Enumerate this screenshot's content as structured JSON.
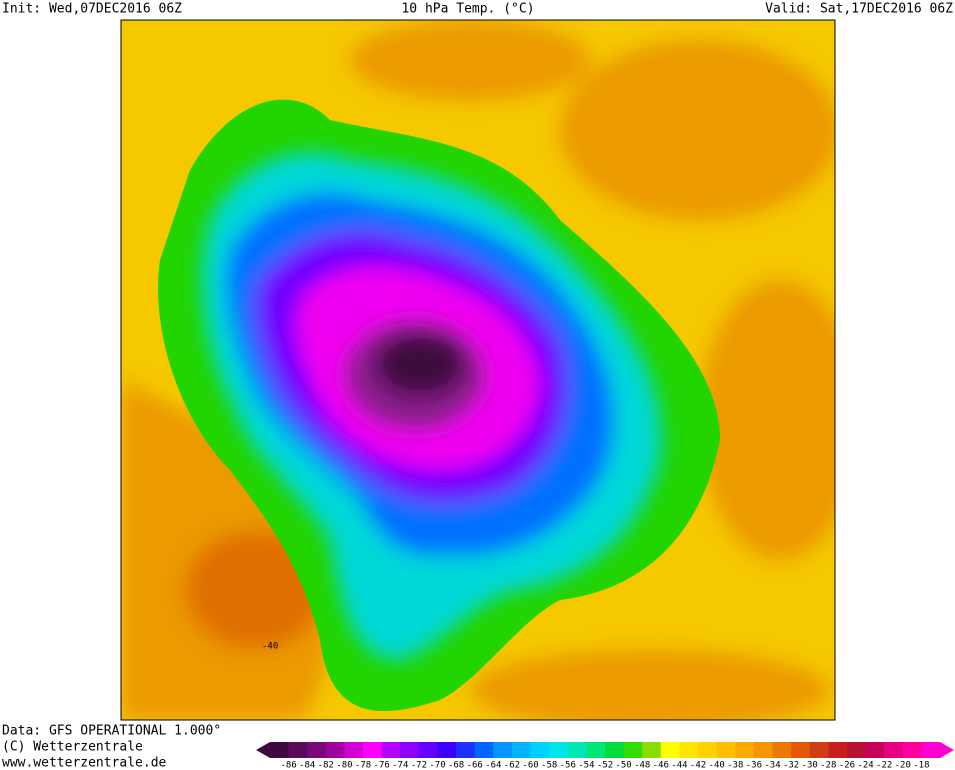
{
  "header": {
    "init": "Init: Wed,07DEC2016 06Z",
    "title": "10 hPa Temp. (°C)",
    "valid": "Valid: Sat,17DEC2016 06Z"
  },
  "map": {
    "contour_label": "-40"
  },
  "footer": {
    "source": "Data: GFS OPERATIONAL 1.000°",
    "copyright": "(C) Wetterzentrale",
    "url": "www.wetterzentrale.de"
  },
  "colorbar": {
    "colors": [
      "#3c0a3c",
      "#5a0a5a",
      "#780a78",
      "#a000a0",
      "#d200d2",
      "#ff00ff",
      "#b400ff",
      "#8c00ff",
      "#6400ff",
      "#3c00ff",
      "#1e32ff",
      "#0064ff",
      "#0096ff",
      "#00b4ff",
      "#00d2ff",
      "#00e6e6",
      "#00e6b4",
      "#00e678",
      "#00dc3c",
      "#32dc00",
      "#8cdc00",
      "#ffff00",
      "#ffe600",
      "#ffd200",
      "#ffbe00",
      "#ffaa00",
      "#f59600",
      "#eb7800",
      "#e15a00",
      "#d23c14",
      "#c81e1e",
      "#b41432",
      "#c8005a",
      "#e6007d",
      "#ff00a0",
      "#ff00d2"
    ],
    "labels": [
      "-86",
      "-84",
      "-82",
      "-80",
      "-78",
      "-76",
      "-74",
      "-72",
      "-70",
      "-68",
      "-66",
      "-64",
      "-62",
      "-60",
      "-58",
      "-56",
      "-54",
      "-52",
      "-50",
      "-48",
      "-46",
      "-44",
      "-42",
      "-40",
      "-38",
      "-36",
      "-34",
      "-32",
      "-30",
      "-28",
      "-26",
      "-24",
      "-22",
      "-20",
      "-18"
    ]
  }
}
